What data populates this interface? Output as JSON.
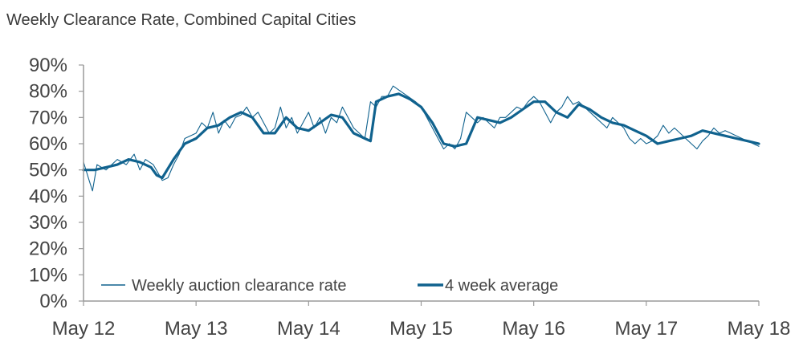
{
  "chart_data": {
    "type": "line",
    "title": "Weekly Clearance Rate, Combined Capital Cities",
    "xlabel": "",
    "ylabel": "",
    "ylim": [
      0,
      90
    ],
    "y_ticks": [
      "0%",
      "10%",
      "20%",
      "30%",
      "40%",
      "50%",
      "60%",
      "70%",
      "80%",
      "90%"
    ],
    "x_ticks": [
      "May 12",
      "May 13",
      "May 14",
      "May 15",
      "May 16",
      "May 17",
      "May 18"
    ],
    "x_range": [
      0,
      6
    ],
    "legend_position": "bottom-left",
    "colors": {
      "line": "#10628e",
      "axis": "#9a9a9a",
      "text": "#444444"
    },
    "series": [
      {
        "name": "Weekly auction clearance rate",
        "style": "thin",
        "x": [
          0,
          0.05,
          0.08,
          0.12,
          0.2,
          0.3,
          0.38,
          0.45,
          0.5,
          0.55,
          0.62,
          0.7,
          0.75,
          0.8,
          0.85,
          0.9,
          1.0,
          1.05,
          1.1,
          1.15,
          1.2,
          1.25,
          1.3,
          1.35,
          1.4,
          1.45,
          1.5,
          1.55,
          1.6,
          1.65,
          1.7,
          1.75,
          1.8,
          1.85,
          1.9,
          2.0,
          2.05,
          2.1,
          2.15,
          2.2,
          2.25,
          2.3,
          2.35,
          2.4,
          2.45,
          2.5,
          2.55,
          2.6,
          2.65,
          2.7,
          2.75,
          2.85,
          2.95,
          3.0,
          3.05,
          3.1,
          3.15,
          3.2,
          3.25,
          3.3,
          3.35,
          3.4,
          3.45,
          3.5,
          3.55,
          3.6,
          3.65,
          3.7,
          3.75,
          3.8,
          3.85,
          3.9,
          3.95,
          4.0,
          4.05,
          4.1,
          4.15,
          4.2,
          4.25,
          4.3,
          4.35,
          4.4,
          4.45,
          4.5,
          4.55,
          4.6,
          4.65,
          4.7,
          4.75,
          4.8,
          4.85,
          4.9,
          4.95,
          5.0,
          5.05,
          5.1,
          5.15,
          5.2,
          5.25,
          5.3,
          5.35,
          5.4,
          5.45,
          5.5,
          5.55,
          5.6,
          5.65,
          5.7,
          5.75,
          5.8,
          5.85,
          5.9,
          5.95,
          6.0
        ],
        "values": [
          53,
          46,
          42,
          52,
          50,
          54,
          52,
          56,
          50,
          54,
          52,
          46,
          47,
          52,
          56,
          62,
          64,
          68,
          66,
          72,
          64,
          69,
          66,
          70,
          71,
          74,
          70,
          72,
          68,
          64,
          66,
          74,
          66,
          70,
          64,
          72,
          66,
          70,
          64,
          70,
          68,
          74,
          70,
          66,
          64,
          62,
          76,
          74,
          78,
          78,
          82,
          79,
          76,
          74,
          70,
          66,
          62,
          58,
          60,
          58,
          62,
          72,
          70,
          68,
          70,
          68,
          66,
          70,
          70,
          72,
          74,
          73,
          76,
          78,
          76,
          72,
          68,
          72,
          74,
          78,
          75,
          76,
          74,
          72,
          70,
          68,
          66,
          70,
          68,
          66,
          62,
          60,
          62,
          60,
          61,
          63,
          67,
          64,
          66,
          64,
          62,
          60,
          58,
          61,
          63,
          66,
          64,
          65,
          64,
          63,
          62,
          61,
          60,
          59
        ]
      },
      {
        "name": "4 week average",
        "style": "thick",
        "x": [
          0,
          0.1,
          0.2,
          0.3,
          0.4,
          0.5,
          0.6,
          0.65,
          0.7,
          0.8,
          0.9,
          1.0,
          1.1,
          1.2,
          1.3,
          1.4,
          1.5,
          1.6,
          1.7,
          1.8,
          1.9,
          2.0,
          2.1,
          2.2,
          2.3,
          2.4,
          2.5,
          2.55,
          2.6,
          2.7,
          2.8,
          2.9,
          3.0,
          3.1,
          3.2,
          3.3,
          3.4,
          3.5,
          3.6,
          3.7,
          3.8,
          3.9,
          4.0,
          4.1,
          4.2,
          4.3,
          4.4,
          4.5,
          4.6,
          4.7,
          4.8,
          4.9,
          5.0,
          5.1,
          5.2,
          5.3,
          5.4,
          5.5,
          5.6,
          5.7,
          5.8,
          5.9,
          6.0
        ],
        "values": [
          50,
          50,
          51,
          52,
          54,
          53,
          51,
          48,
          47,
          54,
          60,
          62,
          66,
          67,
          70,
          72,
          70,
          64,
          64,
          70,
          66,
          65,
          68,
          71,
          70,
          64,
          62,
          61,
          76,
          78,
          79,
          77,
          74,
          68,
          60,
          59,
          60,
          70,
          69,
          68,
          70,
          73,
          76,
          76,
          72,
          70,
          75,
          73,
          70,
          68,
          67,
          65,
          63,
          60,
          61,
          62,
          63,
          65,
          64,
          63,
          62,
          61,
          60
        ]
      }
    ]
  }
}
